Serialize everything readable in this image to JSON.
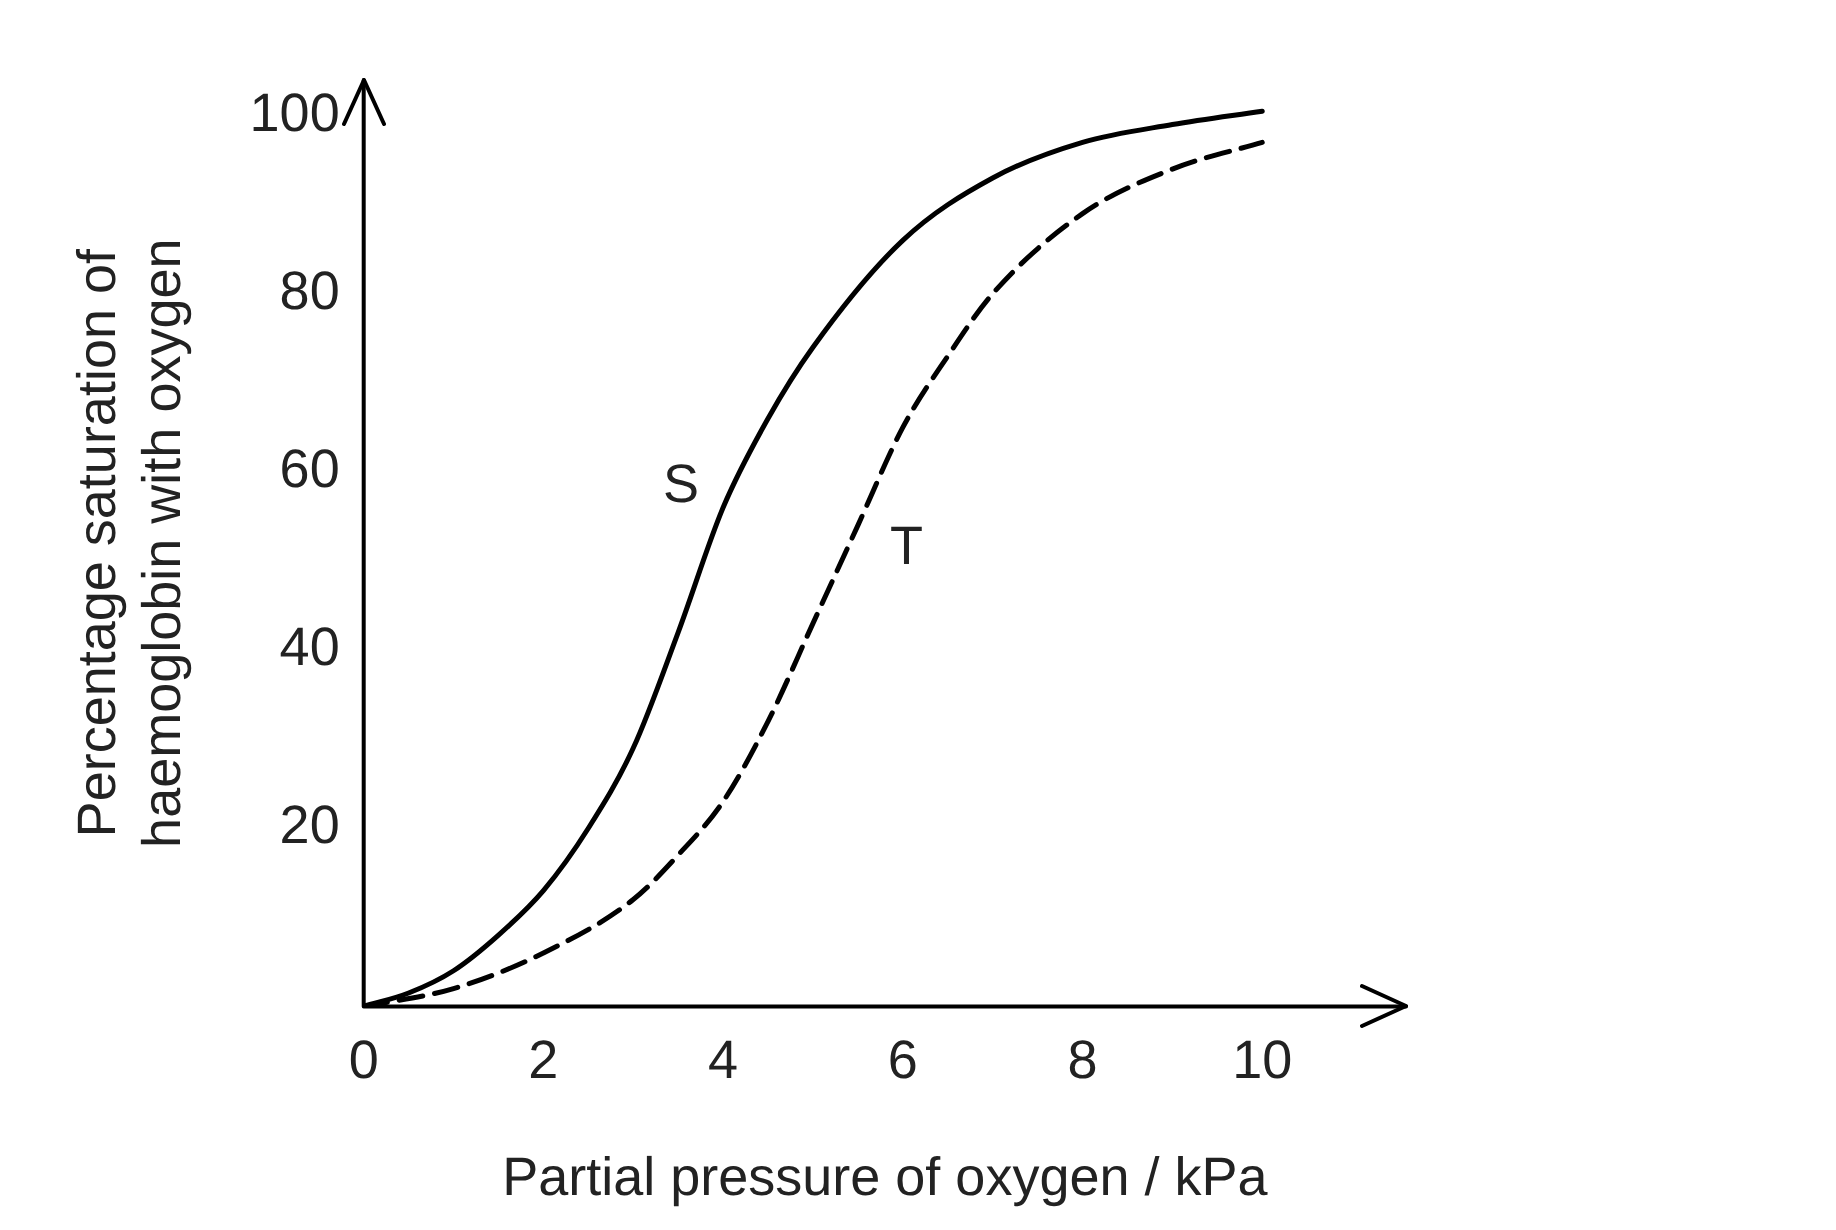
{
  "chart_data": {
    "type": "line",
    "xlabel": "Partial pressure of oxygen / kPa",
    "ylabel": "Percentage saturation of\nhaemoglobin with oxygen",
    "xlim": [
      0,
      11.6
    ],
    "ylim": [
      0,
      104
    ],
    "xticks": [
      0,
      2,
      4,
      6,
      8,
      10
    ],
    "yticks": [
      20,
      40,
      60,
      80,
      100
    ],
    "grid": false,
    "legend": false,
    "marker": "none",
    "series": [
      {
        "name": "S",
        "color": "#000000",
        "line_style": "solid",
        "x": [
          0,
          0.5,
          1,
          1.5,
          2,
          2.5,
          3,
          3.5,
          4,
          4.5,
          5,
          6,
          7,
          8,
          9,
          10
        ],
        "values": [
          0,
          1.5,
          4,
          8,
          13,
          20,
          29,
          42,
          56,
          66,
          74,
          86,
          93,
          97,
          99,
          100.5
        ]
      },
      {
        "name": "T",
        "color": "#000000",
        "line_style": "dashed",
        "x": [
          0,
          1,
          2,
          3,
          3.5,
          4,
          4.5,
          5,
          5.5,
          6,
          6.5,
          7,
          8,
          9,
          10
        ],
        "values": [
          0,
          2,
          6,
          12,
          17,
          23,
          32,
          43,
          54,
          65,
          73,
          80,
          89,
          94,
          97
        ]
      }
    ]
  }
}
